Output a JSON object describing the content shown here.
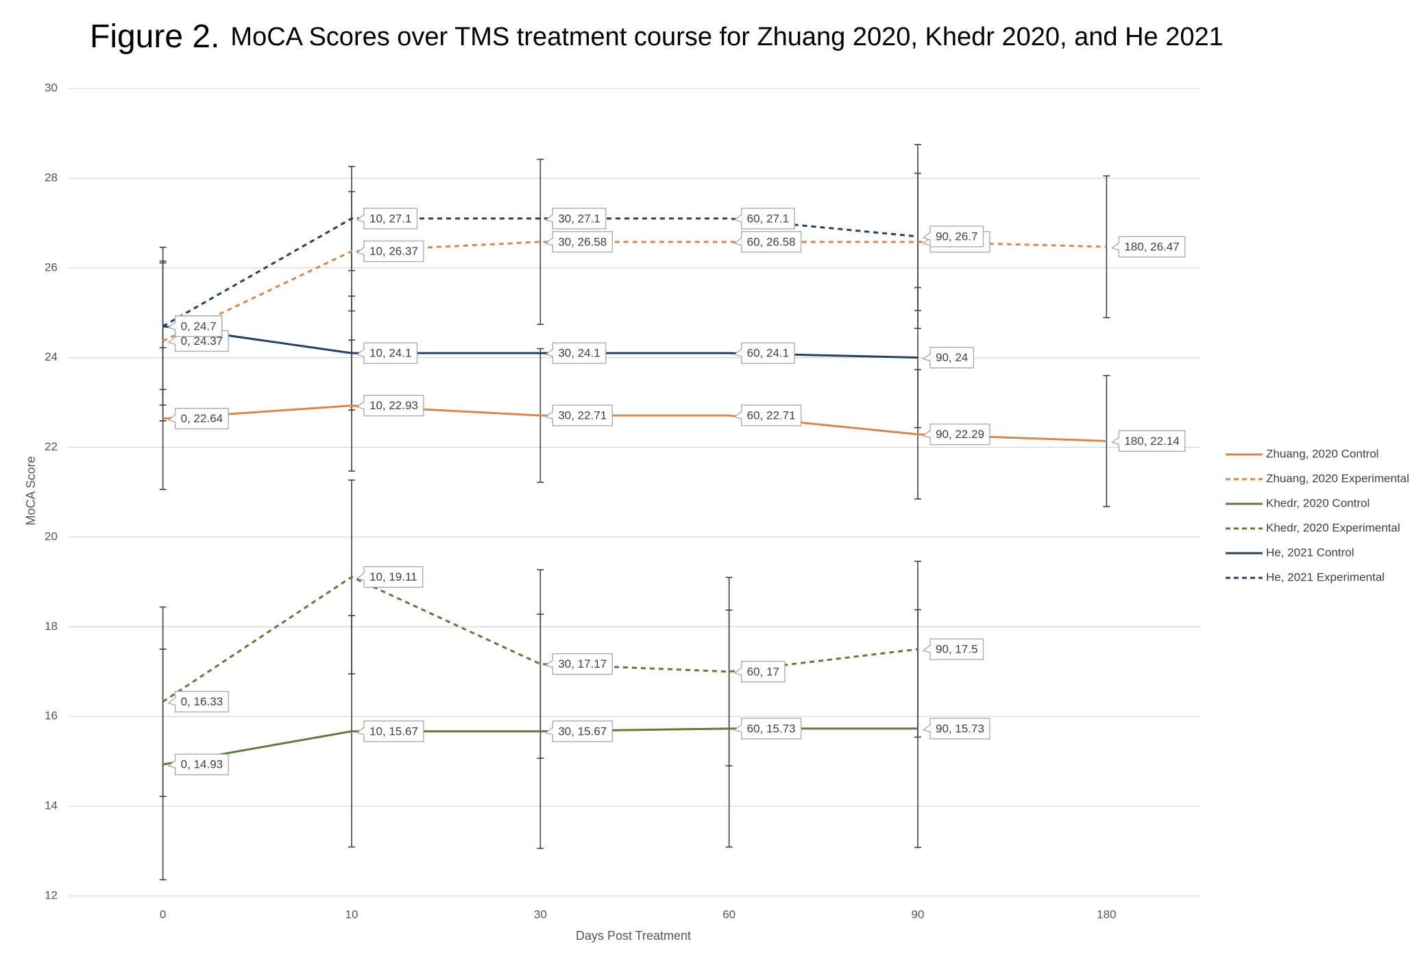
{
  "chart_data": {
    "type": "line",
    "figure_label": "Figure 2.",
    "title": "MoCA Scores over TMS treatment course for Zhuang 2020, Khedr 2020, and He 2021",
    "x_label": "Days Post Treatment",
    "y_label": "MoCA Score",
    "categories": [
      "0",
      "10",
      "30",
      "60",
      "90",
      "180"
    ],
    "ylim": [
      12,
      30
    ],
    "yticks": [
      12,
      14,
      16,
      18,
      20,
      22,
      24,
      26,
      28,
      30
    ],
    "grid": true,
    "legend": "right",
    "series": [
      {
        "name": "Zhuang, 2020 Control",
        "color": "#d4874e",
        "dashed": false,
        "values": [
          22.64,
          22.93,
          22.71,
          22.71,
          22.29,
          22.14
        ],
        "errors": [
          1.58,
          1.46,
          1.49,
          null,
          1.44,
          1.46
        ],
        "value_labels": [
          "0, 22.64",
          "10, 22.93",
          "30, 22.71",
          "60, 22.71",
          "90, 22.29",
          "180, 22.14"
        ]
      },
      {
        "name": "Zhuang, 2020 Experimental",
        "color": "#d4874e",
        "dashed": true,
        "values": [
          24.37,
          26.37,
          26.58,
          26.58,
          26.58,
          26.47
        ],
        "errors": [
          1.78,
          1.33,
          1.84,
          null,
          1.53,
          1.58
        ],
        "value_labels": [
          "0, 24.37",
          "10, 26.37",
          "30, 26.58",
          "60, 26.58",
          "90, 26.58",
          "180, 26.47"
        ]
      },
      {
        "name": "Khedr, 2020 Control",
        "color": "#5b7b3a",
        "dashed": false,
        "values": [
          14.93,
          15.67,
          15.67,
          15.73,
          15.73,
          null
        ],
        "errors": [
          2.57,
          2.58,
          2.61,
          2.64,
          2.65,
          null
        ],
        "value_labels": [
          "0, 14.93",
          "10, 15.67",
          "30, 15.67",
          "60, 15.73",
          "90, 15.73",
          null
        ]
      },
      {
        "name": "Khedr, 2020 Experimental",
        "color": "#5b7b3a",
        "dashed": true,
        "values": [
          16.33,
          19.11,
          17.17,
          17,
          17.5,
          null
        ],
        "errors": [
          2.11,
          2.16,
          2.1,
          2.1,
          1.96,
          null
        ],
        "value_labels": [
          "0, 16.33",
          "10, 19.11",
          "30, 17.17",
          "60, 17",
          "90, 17.5",
          null
        ]
      },
      {
        "name": "He, 2021 Control",
        "color": "#243f60",
        "dashed": false,
        "values": [
          24.7,
          24.1,
          24.1,
          24.1,
          24,
          null
        ],
        "errors": [
          1.76,
          1.27,
          null,
          null,
          1.56,
          null
        ],
        "value_labels": [
          "0, 24.7",
          "10, 24.1",
          "30, 24.1",
          "60, 24.1",
          "90, 24",
          null
        ]
      },
      {
        "name": "He, 2021 Experimental",
        "color": "#243f60",
        "dashed": true,
        "values": [
          24.7,
          27.1,
          27.1,
          27.1,
          26.7,
          null
        ],
        "errors": [
          1.41,
          1.16,
          null,
          null,
          2.05,
          null
        ],
        "value_labels": [
          "0, 24.7",
          "10, 27.1",
          "30, 27.1",
          "60, 27.1",
          "90, 26.7",
          null
        ]
      }
    ]
  }
}
